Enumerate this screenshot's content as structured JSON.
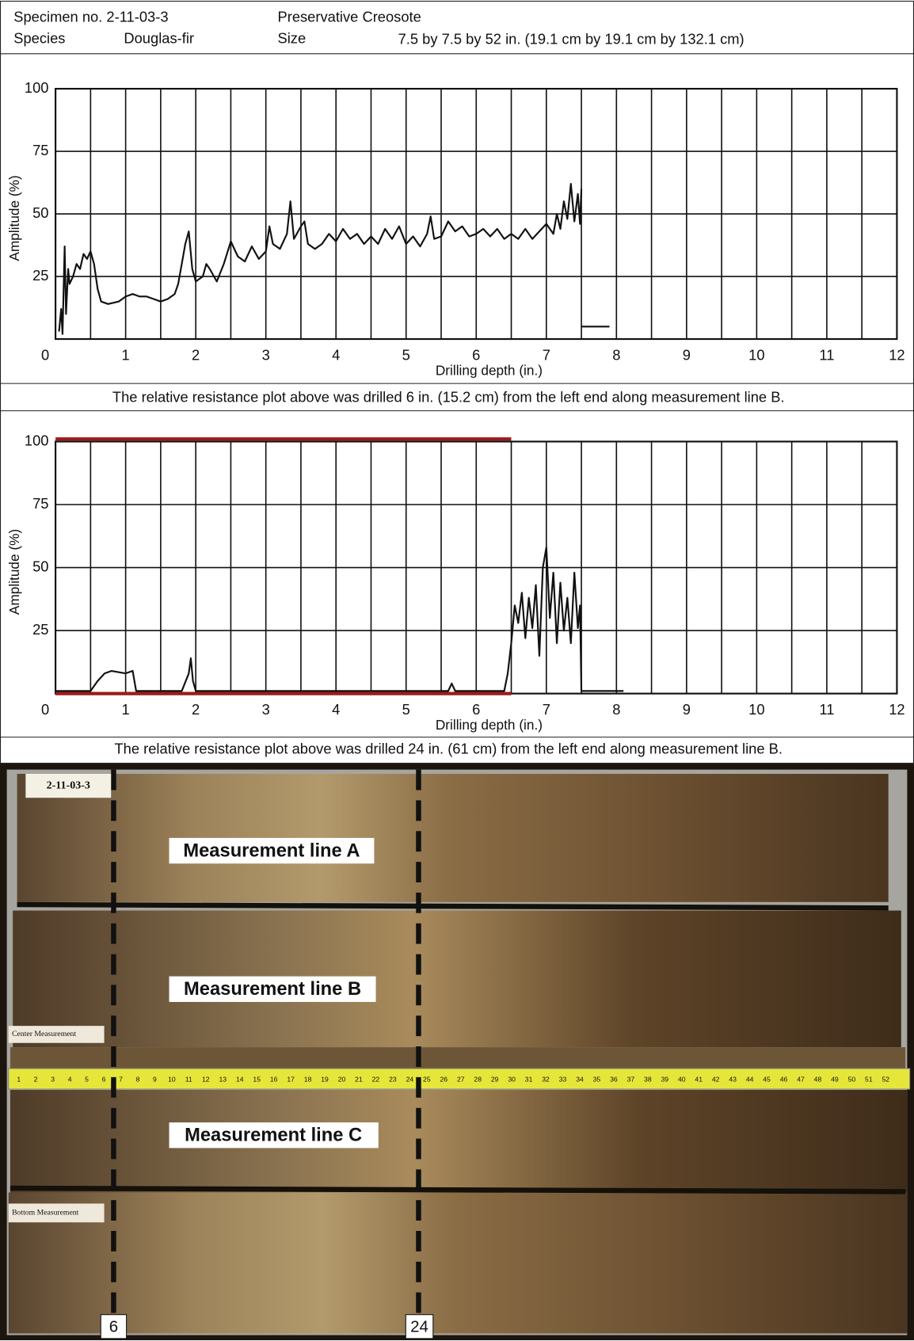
{
  "header": {
    "specimen": "Specimen no. 2-11-03-3",
    "species_label": "Species",
    "species": "Douglas-fir",
    "preservative": "Preservative Creosote",
    "size_label": "Size",
    "size": "7.5 by 7.5 by 52 in. (19.1 cm by 19.1 cm by 132.1 cm)"
  },
  "chart_data": [
    {
      "type": "line",
      "xlabel": "Drilling depth (in.)",
      "ylabel": "Amplitude (%)",
      "caption": "The relative resistance plot above was drilled 6 in. (15.2 cm) from the left end along measurement line B.",
      "xlim": [
        0,
        12
      ],
      "ylim": [
        0,
        100
      ],
      "xticks": [
        0,
        1,
        2,
        3,
        4,
        5,
        6,
        7,
        8,
        9,
        10,
        11,
        12
      ],
      "minor_xticks": [
        0.5,
        1.5,
        2.5,
        3.5,
        4.5,
        5.5,
        6.5,
        7.5,
        8.5,
        9.5,
        10.5,
        11.5
      ],
      "yticks": [
        25,
        50,
        75,
        100
      ],
      "grid": true,
      "series": [
        {
          "color": "#111111",
          "x": [
            0.05,
            0.08,
            0.1,
            0.13,
            0.15,
            0.18,
            0.2,
            0.25,
            0.3,
            0.35,
            0.4,
            0.45,
            0.5,
            0.55,
            0.6,
            0.65,
            0.75,
            0.9,
            1.0,
            1.1,
            1.2,
            1.3,
            1.4,
            1.5,
            1.6,
            1.7,
            1.75,
            1.8,
            1.85,
            1.9,
            1.95,
            2.0,
            2.1,
            2.15,
            2.2,
            2.3,
            2.4,
            2.5,
            2.6,
            2.7,
            2.8,
            2.9,
            3.0,
            3.05,
            3.1,
            3.2,
            3.3,
            3.35,
            3.4,
            3.5,
            3.55,
            3.6,
            3.7,
            3.8,
            3.9,
            4.0,
            4.1,
            4.2,
            4.3,
            4.4,
            4.5,
            4.6,
            4.7,
            4.8,
            4.9,
            5.0,
            5.1,
            5.2,
            5.3,
            5.35,
            5.4,
            5.5,
            5.6,
            5.7,
            5.8,
            5.9,
            6.0,
            6.1,
            6.2,
            6.3,
            6.4,
            6.5,
            6.6,
            6.7,
            6.8,
            6.9,
            7.0,
            7.1,
            7.15,
            7.2,
            7.25,
            7.3,
            7.35,
            7.4,
            7.45,
            7.48,
            7.5,
            7.5,
            7.5,
            7.9
          ],
          "values": [
            3,
            12,
            2,
            37,
            10,
            28,
            22,
            25,
            30,
            28,
            34,
            32,
            35,
            30,
            20,
            15,
            14,
            15,
            17,
            18,
            17,
            17,
            16,
            15,
            16,
            18,
            22,
            30,
            38,
            43,
            28,
            23,
            25,
            30,
            28,
            23,
            30,
            39,
            33,
            31,
            37,
            32,
            35,
            45,
            38,
            36,
            42,
            55,
            40,
            45,
            47,
            38,
            36,
            38,
            42,
            39,
            44,
            40,
            42,
            38,
            41,
            38,
            44,
            40,
            45,
            38,
            41,
            37,
            42,
            49,
            40,
            41,
            47,
            43,
            45,
            41,
            42,
            44,
            41,
            44,
            40,
            42,
            40,
            44,
            40,
            43,
            46,
            42,
            50,
            44,
            55,
            48,
            62,
            47,
            58,
            46,
            60,
            null,
            5,
            5
          ]
        }
      ]
    },
    {
      "type": "line",
      "xlabel": "Drilling depth (in.)",
      "ylabel": "Amplitude (%)",
      "caption": "The relative resistance plot above was drilled 24 in. (61 cm) from the left end along measurement line B.",
      "xlim": [
        0,
        12
      ],
      "ylim": [
        0,
        100
      ],
      "xticks": [
        0,
        1,
        2,
        3,
        4,
        5,
        6,
        7,
        8,
        9,
        10,
        11,
        12
      ],
      "minor_xticks": [
        0.5,
        1.5,
        2.5,
        3.5,
        4.5,
        5.5,
        6.5,
        7.5,
        8.5,
        9.5,
        10.5,
        11.5
      ],
      "yticks": [
        25,
        50,
        75,
        100
      ],
      "grid": true,
      "series": [
        {
          "color": "#9b1c1c",
          "x": [
            0,
            6.5
          ],
          "values": [
            101,
            101
          ]
        },
        {
          "color": "#9b1c1c",
          "x": [
            0,
            6.5
          ],
          "values": [
            0,
            0
          ]
        },
        {
          "color": "#111111",
          "x": [
            0,
            0.5,
            0.6,
            0.7,
            0.8,
            1.0,
            1.1,
            1.15,
            1.8,
            1.9,
            1.93,
            1.96,
            2.0,
            5.6,
            5.65,
            5.7,
            6.4,
            6.45,
            6.5,
            6.55,
            6.6,
            6.65,
            6.7,
            6.75,
            6.8,
            6.85,
            6.9,
            6.95,
            7.0,
            7.05,
            7.1,
            7.15,
            7.2,
            7.25,
            7.3,
            7.35,
            7.4,
            7.45,
            7.48,
            7.5,
            8.1
          ],
          "values": [
            1,
            1,
            5,
            8,
            9,
            8,
            9,
            1,
            1,
            8,
            14,
            5,
            1,
            1,
            4,
            1,
            1,
            8,
            20,
            35,
            28,
            40,
            22,
            38,
            26,
            43,
            15,
            50,
            58,
            30,
            48,
            20,
            44,
            25,
            38,
            20,
            48,
            26,
            35,
            1,
            1
          ]
        }
      ]
    }
  ],
  "photo": {
    "tag": "2-11-03-3",
    "line_a": "Measurement line A",
    "line_b": "Measurement line B",
    "line_c": "Measurement line C",
    "center": "Center Measurement",
    "bottom": "Bottom Measurement",
    "mark_6": "6",
    "mark_24": "24",
    "tape": [
      "1",
      "2",
      "3",
      "4",
      "5",
      "6",
      "7",
      "8",
      "9",
      "10",
      "11",
      "12",
      "13",
      "14",
      "15",
      "16",
      "17",
      "18",
      "19",
      "20",
      "21",
      "22",
      "23",
      "24",
      "25",
      "26",
      "27",
      "28",
      "29",
      "30",
      "31",
      "32",
      "33",
      "34",
      "35",
      "36",
      "37",
      "38",
      "39",
      "40",
      "41",
      "42",
      "43",
      "44",
      "45",
      "46",
      "47",
      "48",
      "49",
      "50",
      "51",
      "52"
    ]
  }
}
